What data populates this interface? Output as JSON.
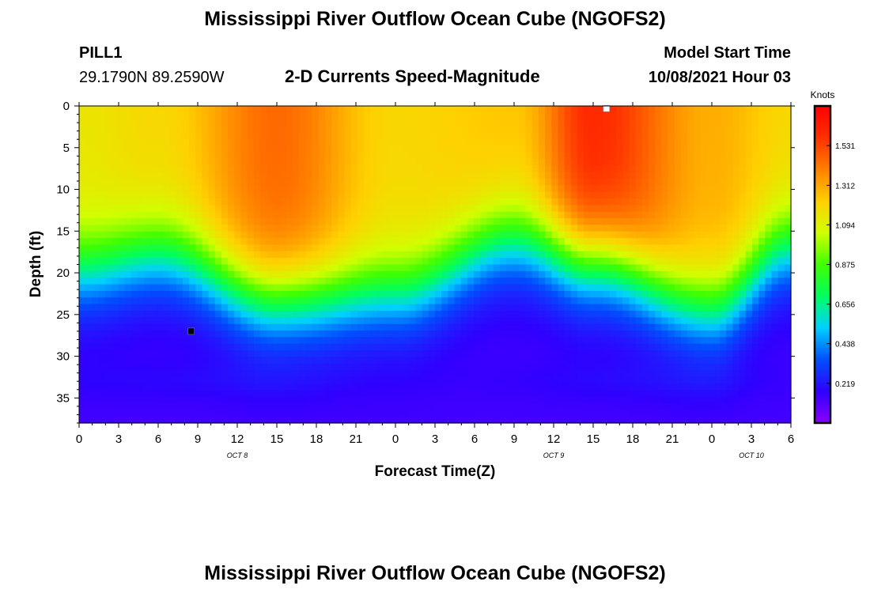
{
  "header": {
    "title": "Mississippi River Outflow Ocean Cube (NGOFS2)",
    "station_id": "PILL1",
    "station_coords": "29.1790N  89.2590W",
    "plot_title": "2-D Currents Speed-Magnitude",
    "model_start_label": "Model Start Time",
    "model_start_value": "10/08/2021 Hour 03"
  },
  "footer": {
    "title": "Mississippi River Outflow Ocean Cube (NGOFS2)"
  },
  "chart_data": {
    "type": "heatmap",
    "xlabel": "Forecast Time(Z)",
    "ylabel": "Depth (ft)",
    "x_tick_labels": [
      "0",
      "3",
      "6",
      "9",
      "12",
      "15",
      "18",
      "21",
      "0",
      "3",
      "6",
      "9",
      "12",
      "15",
      "18",
      "21",
      "0",
      "3",
      "6"
    ],
    "x_range_hours": [
      0,
      54
    ],
    "date_labels": [
      {
        "label": "OCT 8",
        "hour": 12
      },
      {
        "label": "OCT 9",
        "hour": 36
      },
      {
        "label": "OCT 10",
        "hour": 51
      }
    ],
    "y_tick_labels": [
      "0",
      "5",
      "10",
      "15",
      "20",
      "25",
      "30",
      "35"
    ],
    "y_range_ft": [
      0,
      38
    ],
    "colorbar": {
      "unit": "Knots",
      "tick_labels": [
        "1.531",
        "1.312",
        "1.094",
        "0.875",
        "0.656",
        "0.438",
        "0.219"
      ],
      "range": [
        0,
        1.75
      ],
      "colors": [
        "#8b00ff",
        "#3000ff",
        "#0050ff",
        "#00d0ff",
        "#00ff60",
        "#40ff00",
        "#d0ff00",
        "#ffd000",
        "#ff8000",
        "#ff3000",
        "#ff0000"
      ]
    },
    "surface_speed_knots": {
      "hours": [
        0,
        6,
        15,
        24,
        33,
        39,
        48,
        54
      ],
      "values": [
        1.15,
        1.2,
        1.45,
        1.2,
        1.25,
        1.6,
        1.3,
        1.2
      ]
    },
    "mixed_layer_depth_ft": {
      "hours": [
        0,
        6,
        15,
        24,
        33,
        39,
        48,
        54
      ],
      "values": [
        22,
        20,
        26,
        25,
        18,
        21,
        27,
        19
      ]
    },
    "markers": [
      {
        "hour": 8.5,
        "depth_ft": 27,
        "color": "#000000"
      },
      {
        "hour": 40,
        "depth_ft": 0.3,
        "color": "#ffffff"
      }
    ]
  }
}
